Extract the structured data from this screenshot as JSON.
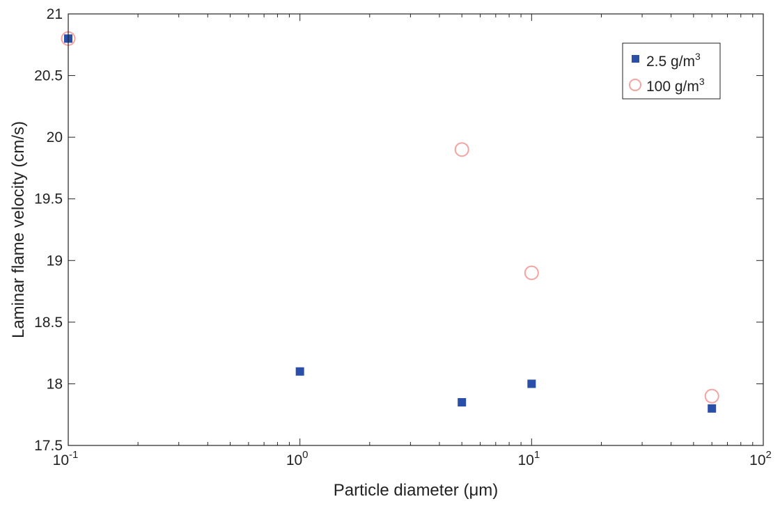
{
  "chart_data": {
    "type": "scatter",
    "title": "",
    "xlabel": "Particle diameter (μm)",
    "ylabel": "Laminar flame velocity (cm/s)",
    "xscale": "log",
    "xlim": [
      0.1,
      100
    ],
    "ylim": [
      17.5,
      21
    ],
    "x_ticks": [
      {
        "value": 0.1,
        "base": "10",
        "exp": "-1"
      },
      {
        "value": 1,
        "base": "10",
        "exp": "0"
      },
      {
        "value": 10,
        "base": "10",
        "exp": "1"
      },
      {
        "value": 100,
        "base": "10",
        "exp": "2"
      }
    ],
    "y_ticks": [
      {
        "value": 17.5,
        "label": "17.5"
      },
      {
        "value": 18,
        "label": "18"
      },
      {
        "value": 18.5,
        "label": "18.5"
      },
      {
        "value": 19,
        "label": "19"
      },
      {
        "value": 19.5,
        "label": "19.5"
      },
      {
        "value": 20,
        "label": "20"
      },
      {
        "value": 20.5,
        "label": "20.5"
      },
      {
        "value": 21,
        "label": "21"
      }
    ],
    "grid": false,
    "legend_position": "top-right",
    "series": [
      {
        "name": "2.5 g/m",
        "name_sup": "3",
        "marker": "filled-square",
        "color": "#2a4fa8",
        "points": [
          {
            "x": 0.1,
            "y": 20.8
          },
          {
            "x": 1,
            "y": 18.1
          },
          {
            "x": 5,
            "y": 17.85
          },
          {
            "x": 10,
            "y": 18.0
          },
          {
            "x": 60,
            "y": 17.8
          }
        ]
      },
      {
        "name": "100 g/m",
        "name_sup": "3",
        "marker": "open-circle",
        "color": "#f4a3a0",
        "points": [
          {
            "x": 0.1,
            "y": 20.8
          },
          {
            "x": 5,
            "y": 19.9
          },
          {
            "x": 10,
            "y": 18.9
          },
          {
            "x": 60,
            "y": 17.9
          }
        ]
      }
    ]
  }
}
